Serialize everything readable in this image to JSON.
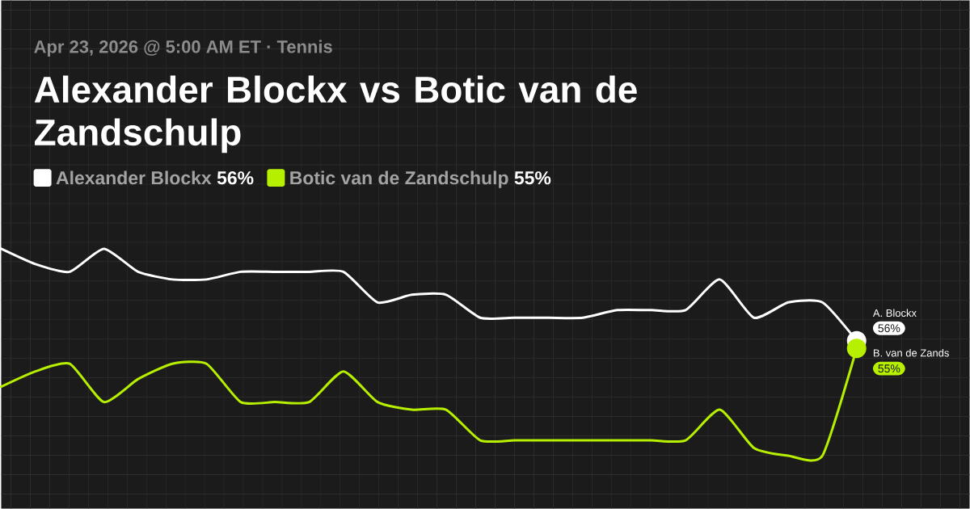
{
  "chart_data": {
    "type": "line",
    "subtitle": "Apr 23, 2026 @ 5:00 AM ET · Tennis",
    "title": "Alexander Blockx vs Botic van de Zandschulp",
    "categories": [
      null,
      null,
      null,
      null,
      null,
      null,
      null,
      null,
      null,
      null,
      null,
      null,
      null,
      null,
      null,
      null,
      null,
      null,
      null,
      null,
      null,
      null,
      null,
      null,
      null,
      null
    ],
    "series": [
      {
        "name": "Alexander Blockx",
        "color": "#ffffff",
        "values": [
          68,
          66,
          65,
          68,
          65,
          64,
          64,
          65,
          65,
          65,
          65,
          61,
          62,
          62,
          59,
          59,
          59,
          59,
          60,
          60,
          60,
          64,
          59,
          61,
          61,
          56
        ],
        "value_labels": [
          null,
          null,
          null,
          null,
          null,
          null,
          null,
          null,
          null,
          null,
          null,
          null,
          null,
          null,
          null,
          null,
          null,
          null,
          null,
          null,
          null,
          null,
          null,
          null,
          null,
          "56%"
        ]
      },
      {
        "name": "Botic van de Zandschulp",
        "color": "#b6f000",
        "values": [
          50,
          52,
          53,
          48,
          51,
          53,
          53,
          48,
          48,
          48,
          52,
          48,
          47,
          47,
          43,
          43,
          43,
          43,
          43,
          43,
          43,
          47,
          42,
          41,
          41,
          55
        ],
        "value_labels": [
          null,
          null,
          null,
          null,
          null,
          null,
          null,
          null,
          null,
          null,
          null,
          null,
          null,
          null,
          null,
          null,
          null,
          null,
          null,
          null,
          null,
          null,
          null,
          null,
          null,
          "55%"
        ]
      }
    ],
    "annotations": [
      "A. Blockx",
      "B. van de Zands"
    ],
    "grid": true,
    "legend": "top left"
  }
}
